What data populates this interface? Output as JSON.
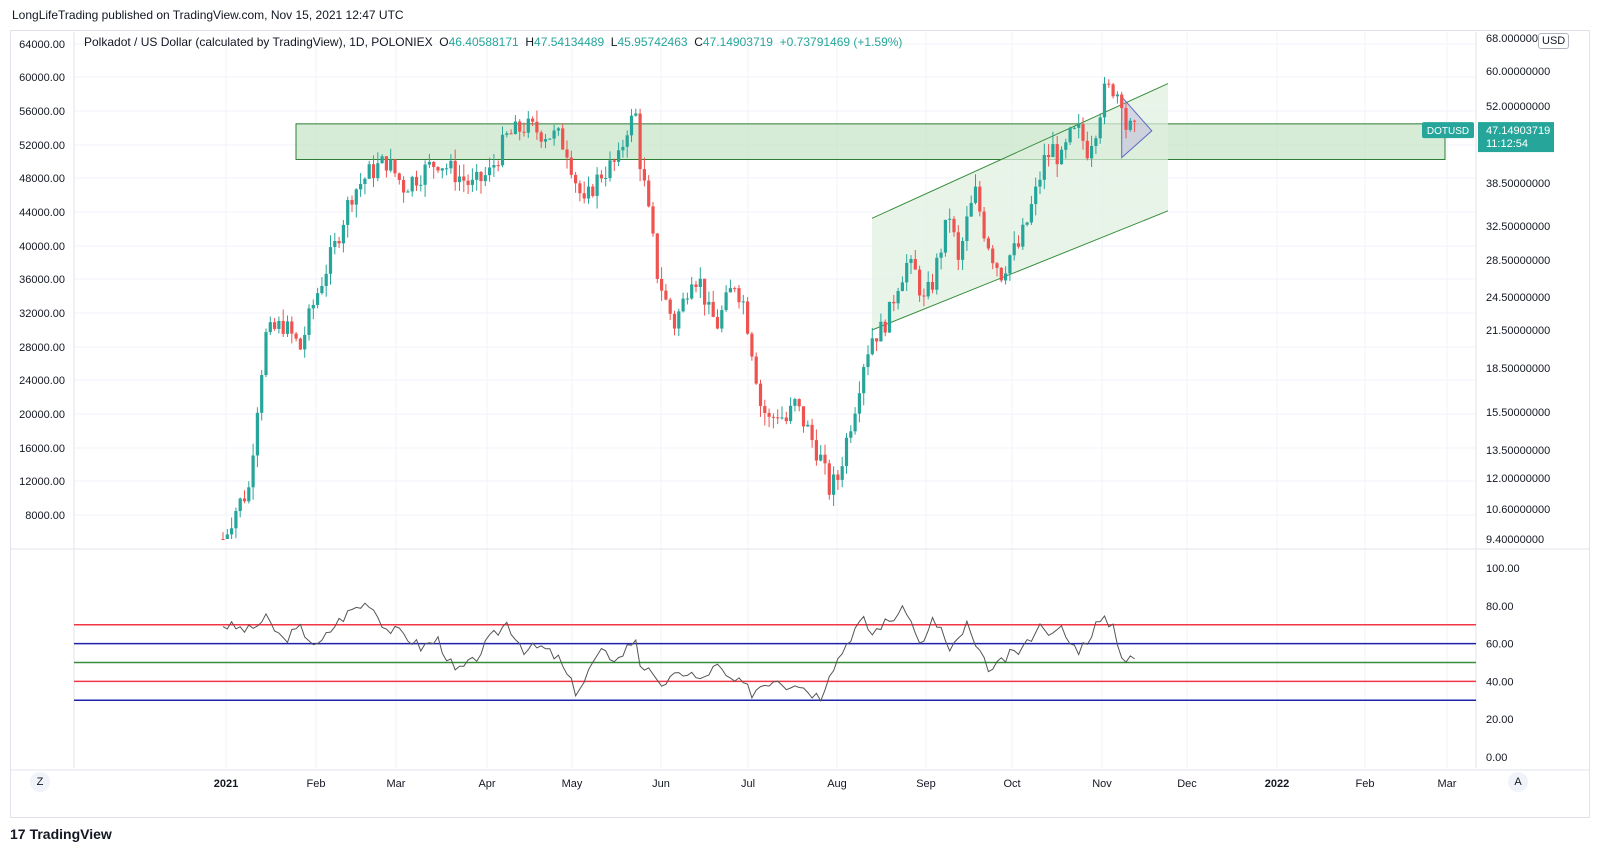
{
  "header": {
    "publish_line": "LongLifeTrading published on TradingView.com, Nov 15, 2021 12:47 UTC"
  },
  "legend": {
    "symbol": "Polkadot / US Dollar (calculated by TradingView), 1D, POLONIEX",
    "o_label": "O",
    "o_value": "46.40588171",
    "h_label": "H",
    "h_value": "47.54134489",
    "l_label": "L",
    "l_value": "45.95742463",
    "c_label": "C",
    "c_value": "47.14903719",
    "change": "+0.73791469 (+1.59%)"
  },
  "price_tag": {
    "ticker": "DOTUSD",
    "price": "47.14903719",
    "countdown": "11:12:54"
  },
  "buttons": {
    "currency": "USD",
    "zoom_left": "Z",
    "auto_right": "A"
  },
  "footer": {
    "logo": "17",
    "brand": "TradingView"
  },
  "colors": {
    "up": "#26a69a",
    "down": "#ef5350",
    "zone": "#c8e6c9",
    "zone_border": "#2e7d32",
    "rsi_line": "#555555"
  },
  "chart_data": {
    "type": "candlestick",
    "title": "Polkadot / US Dollar 1D",
    "left_axis_ticks": [
      "64000.00",
      "60000.00",
      "56000.00",
      "52000.00",
      "48000.00",
      "44000.00",
      "40000.00",
      "36000.00",
      "32000.00",
      "28000.00",
      "24000.00",
      "20000.00",
      "16000.00",
      "12000.00",
      "8000.00"
    ],
    "right_axis_ticks": [
      "68.00000000",
      "60.00000000",
      "52.00000000",
      "38.50000000",
      "32.50000000",
      "28.50000000",
      "24.50000000",
      "21.50000000",
      "18.50000000",
      "15.50000000",
      "13.50000000",
      "12.00000000",
      "10.60000000",
      "9.40000000"
    ],
    "x_ticks": [
      "2021",
      "Feb",
      "Mar",
      "Apr",
      "May",
      "Jun",
      "Jul",
      "Aug",
      "Sep",
      "Oct",
      "Nov",
      "Dec",
      "2022",
      "Feb",
      "Mar"
    ],
    "price_path": [
      [
        0,
        9.4
      ],
      [
        3,
        10.6
      ],
      [
        6,
        11.5
      ],
      [
        8,
        16
      ],
      [
        10,
        21
      ],
      [
        14,
        22
      ],
      [
        18,
        20
      ],
      [
        22,
        25
      ],
      [
        26,
        30
      ],
      [
        30,
        37
      ],
      [
        34,
        40
      ],
      [
        38,
        42
      ],
      [
        42,
        38
      ],
      [
        46,
        40
      ],
      [
        50,
        42
      ],
      [
        54,
        40
      ],
      [
        58,
        38
      ],
      [
        62,
        40
      ],
      [
        66,
        46
      ],
      [
        70,
        48
      ],
      [
        74,
        47
      ],
      [
        78,
        46
      ],
      [
        80,
        44
      ],
      [
        82,
        39
      ],
      [
        84,
        35
      ],
      [
        86,
        38
      ],
      [
        88,
        40
      ],
      [
        92,
        42
      ],
      [
        94,
        48
      ],
      [
        96,
        50
      ],
      [
        97,
        42
      ],
      [
        99,
        34
      ],
      [
        101,
        27
      ],
      [
        103,
        24
      ],
      [
        105,
        22
      ],
      [
        107,
        24
      ],
      [
        109,
        27
      ],
      [
        111,
        26
      ],
      [
        113,
        23
      ],
      [
        115,
        22
      ],
      [
        117,
        24
      ],
      [
        119,
        26
      ],
      [
        121,
        24
      ],
      [
        123,
        20
      ],
      [
        125,
        16
      ],
      [
        127,
        15
      ],
      [
        129,
        15.5
      ],
      [
        131,
        15
      ],
      [
        133,
        16
      ],
      [
        135,
        15
      ],
      [
        137,
        14
      ],
      [
        139,
        13
      ],
      [
        141,
        11.5
      ],
      [
        143,
        12
      ],
      [
        145,
        14
      ],
      [
        147,
        16
      ],
      [
        149,
        19
      ],
      [
        151,
        21
      ],
      [
        153,
        21.5
      ],
      [
        155,
        23
      ],
      [
        157,
        26
      ],
      [
        159,
        28
      ],
      [
        161,
        27
      ],
      [
        163,
        24
      ],
      [
        165,
        26
      ],
      [
        167,
        30
      ],
      [
        169,
        34
      ],
      [
        171,
        28
      ],
      [
        173,
        33
      ],
      [
        175,
        37
      ],
      [
        177,
        32
      ],
      [
        179,
        29
      ],
      [
        181,
        27
      ],
      [
        183,
        29
      ],
      [
        185,
        30
      ],
      [
        187,
        33
      ],
      [
        189,
        37
      ],
      [
        191,
        42
      ],
      [
        193,
        44
      ],
      [
        195,
        42
      ],
      [
        197,
        46
      ],
      [
        199,
        47
      ],
      [
        201,
        44
      ],
      [
        203,
        48
      ],
      [
        205,
        55
      ],
      [
        207,
        56
      ],
      [
        209,
        54
      ],
      [
        210,
        48
      ],
      [
        212,
        47
      ]
    ],
    "green_zone_price": [
      42.2,
      48.5
    ],
    "channel_upper_start": 33.5,
    "channel_upper_end": 57,
    "channel_lower_start": 21.5,
    "channel_lower_end": 34.5,
    "rsi": {
      "ticks": [
        "100.00",
        "80.00",
        "60.00",
        "40.00",
        "20.00",
        "0.00"
      ],
      "levels": [
        {
          "value": 70,
          "color": "#f23645"
        },
        {
          "value": 60,
          "color": "#1e22aa"
        },
        {
          "value": 50,
          "color": "#388e3c"
        },
        {
          "value": 40,
          "color": "#f23645"
        },
        {
          "value": 30,
          "color": "#1e22aa"
        }
      ],
      "path": [
        [
          0,
          70
        ],
        [
          6,
          67
        ],
        [
          10,
          73
        ],
        [
          14,
          62
        ],
        [
          18,
          68
        ],
        [
          22,
          58
        ],
        [
          26,
          70
        ],
        [
          30,
          78
        ],
        [
          34,
          82
        ],
        [
          38,
          68
        ],
        [
          42,
          65
        ],
        [
          46,
          58
        ],
        [
          50,
          62
        ],
        [
          54,
          45
        ],
        [
          58,
          50
        ],
        [
          62,
          62
        ],
        [
          66,
          71
        ],
        [
          70,
          57
        ],
        [
          74,
          58
        ],
        [
          78,
          52
        ],
        [
          80,
          43
        ],
        [
          82,
          35
        ],
        [
          84,
          40
        ],
        [
          86,
          50
        ],
        [
          88,
          55
        ],
        [
          92,
          52
        ],
        [
          94,
          58
        ],
        [
          96,
          63
        ],
        [
          97,
          50
        ],
        [
          99,
          45
        ],
        [
          101,
          38
        ],
        [
          103,
          40
        ],
        [
          105,
          42
        ],
        [
          107,
          45
        ],
        [
          109,
          44
        ],
        [
          111,
          40
        ],
        [
          113,
          45
        ],
        [
          115,
          48
        ],
        [
          117,
          42
        ],
        [
          119,
          40
        ],
        [
          121,
          38
        ],
        [
          123,
          34
        ],
        [
          125,
          38
        ],
        [
          127,
          40
        ],
        [
          129,
          42
        ],
        [
          131,
          38
        ],
        [
          133,
          40
        ],
        [
          135,
          37
        ],
        [
          137,
          34
        ],
        [
          139,
          32
        ],
        [
          141,
          45
        ],
        [
          143,
          52
        ],
        [
          145,
          60
        ],
        [
          147,
          68
        ],
        [
          149,
          72
        ],
        [
          151,
          65
        ],
        [
          153,
          70
        ],
        [
          155,
          72
        ],
        [
          157,
          76
        ],
        [
          159,
          78
        ],
        [
          161,
          65
        ],
        [
          163,
          60
        ],
        [
          165,
          72
        ],
        [
          167,
          68
        ],
        [
          169,
          55
        ],
        [
          171,
          62
        ],
        [
          173,
          70
        ],
        [
          175,
          58
        ],
        [
          177,
          50
        ],
        [
          179,
          46
        ],
        [
          181,
          50
        ],
        [
          183,
          54
        ],
        [
          185,
          56
        ],
        [
          187,
          60
        ],
        [
          189,
          68
        ],
        [
          191,
          70
        ],
        [
          193,
          64
        ],
        [
          195,
          68
        ],
        [
          197,
          60
        ],
        [
          199,
          57
        ],
        [
          201,
          62
        ],
        [
          203,
          70
        ],
        [
          205,
          72
        ],
        [
          207,
          70
        ],
        [
          209,
          54
        ],
        [
          210,
          51
        ],
        [
          212,
          52
        ]
      ]
    }
  }
}
